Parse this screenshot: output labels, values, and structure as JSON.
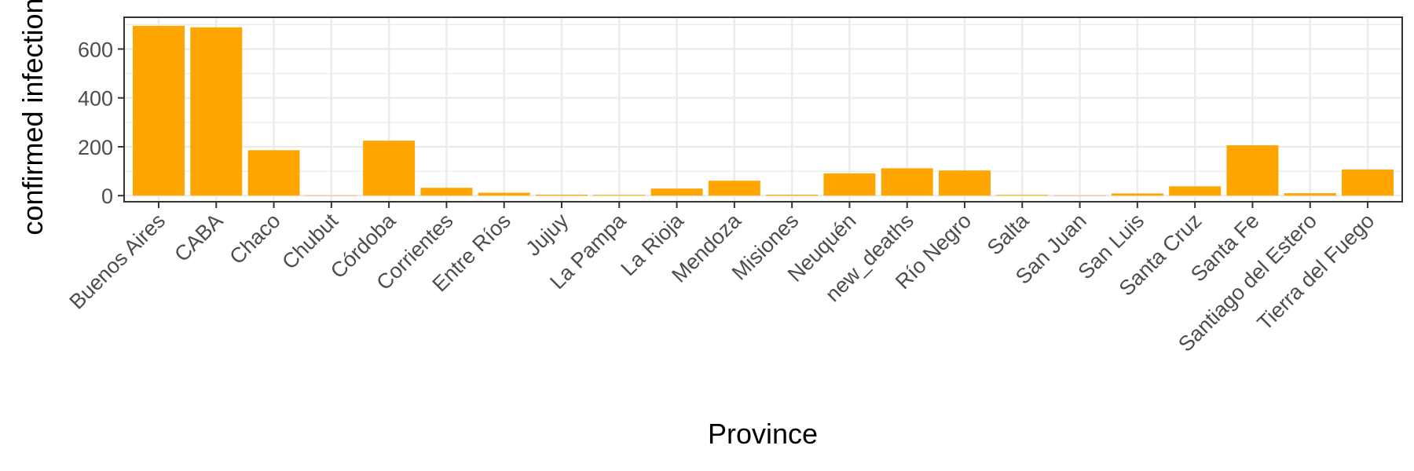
{
  "chart_data": {
    "type": "bar",
    "title": "",
    "xlabel": "Province",
    "ylabel": "confirmed infections",
    "categories": [
      "Buenos Aires",
      "CABA",
      "Chaco",
      "Chubut",
      "Córdoba",
      "Corrientes",
      "Entre Ríos",
      "Jujuy",
      "La Pampa",
      "La Rioja",
      "Mendoza",
      "Misiones",
      "Neuquén",
      "new_deaths",
      "Río Negro",
      "Salta",
      "San Juan",
      "San Luis",
      "Santa Cruz",
      "Santa Fe",
      "Santiago del Estero",
      "Tierra del Fuego"
    ],
    "values": [
      695,
      689,
      186,
      1,
      225,
      32,
      12,
      4,
      3,
      29,
      61,
      4,
      91,
      112,
      103,
      3,
      1,
      9,
      38,
      206,
      10,
      107
    ],
    "yticks": [
      0,
      200,
      400,
      600
    ],
    "ylim": [
      -25,
      730
    ],
    "grid": true,
    "bar_color": "#FFA500",
    "panel_border_color": "#333333",
    "grid_color": "#ebebeb"
  }
}
